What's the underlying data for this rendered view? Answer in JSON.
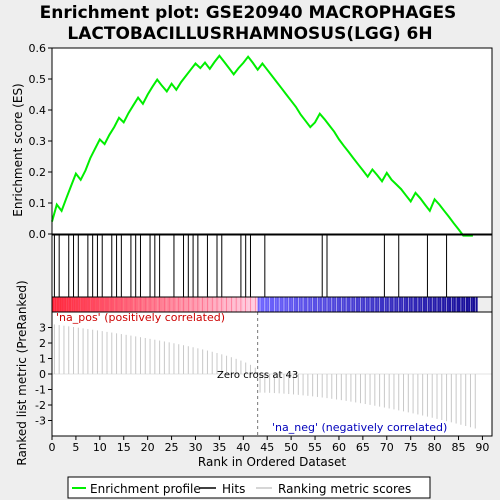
{
  "title_lines": [
    "Enrichment plot: GSE20940 MACROPHAGES",
    "LACTOBACILLUSRHAMNOSUS(LGG) 6H"
  ],
  "colors": {
    "background": "#eeeeee",
    "panel": "#ffffff",
    "es_line": "#00ee00",
    "hits": "#000000",
    "metric": "#c8c8c8",
    "pos_label": "#cc0000",
    "neg_label": "#0000bb",
    "zero_cross": "#999999"
  },
  "chart_data": {
    "type": "line",
    "top_panel": {
      "ylabel": "Enrichment score (ES)",
      "ylim": [
        0,
        0.6
      ],
      "yticks": [
        0.0,
        0.1,
        0.2,
        0.3,
        0.4,
        0.5,
        0.6
      ],
      "ytick_labels": [
        "0.0",
        "0.1",
        "0.2",
        "0.3",
        "0.4",
        "0.5",
        "0.6"
      ],
      "series": [
        {
          "x": [
            0,
            1,
            2,
            3,
            4,
            5,
            6,
            7,
            8,
            9,
            10,
            11,
            12,
            13,
            14,
            15,
            16,
            17,
            18,
            19,
            20,
            21,
            22,
            23,
            24,
            25,
            26,
            27,
            28,
            29,
            30,
            31,
            32,
            33,
            34,
            35,
            36,
            37,
            38,
            39,
            40,
            41,
            42,
            43,
            44,
            45,
            46,
            47,
            48,
            49,
            50,
            51,
            52,
            53,
            54,
            55,
            56,
            57,
            58,
            59,
            60,
            61,
            62,
            63,
            64,
            65,
            66,
            67,
            68,
            69,
            70,
            71,
            72,
            73,
            74,
            75,
            76,
            77,
            78,
            79,
            80,
            81,
            82,
            83,
            84,
            85,
            86,
            87,
            88
          ],
          "y": [
            0.04,
            0.095,
            0.075,
            0.115,
            0.155,
            0.195,
            0.175,
            0.205,
            0.245,
            0.275,
            0.305,
            0.29,
            0.32,
            0.345,
            0.375,
            0.36,
            0.39,
            0.415,
            0.44,
            0.42,
            0.45,
            0.475,
            0.498,
            0.478,
            0.46,
            0.485,
            0.465,
            0.49,
            0.51,
            0.53,
            0.55,
            0.535,
            0.553,
            0.533,
            0.555,
            0.575,
            0.555,
            0.535,
            0.515,
            0.535,
            0.552,
            0.572,
            0.552,
            0.53,
            0.55,
            0.53,
            0.51,
            0.49,
            0.47,
            0.45,
            0.43,
            0.41,
            0.385,
            0.365,
            0.345,
            0.36,
            0.388,
            0.37,
            0.35,
            0.33,
            0.305,
            0.285,
            0.265,
            0.245,
            0.225,
            0.205,
            0.185,
            0.208,
            0.19,
            0.17,
            0.197,
            0.175,
            0.16,
            0.145,
            0.125,
            0.105,
            0.133,
            0.115,
            0.095,
            0.075,
            0.112,
            0.095,
            0.075,
            0.055,
            0.035,
            0.015,
            -0.005,
            -0.005,
            -0.005
          ]
        }
      ]
    },
    "hits": [
      0,
      1,
      3,
      4,
      5,
      7,
      8,
      9,
      10,
      12,
      13,
      14,
      16,
      17,
      18,
      20,
      21,
      22,
      25,
      27,
      28,
      29,
      30,
      32,
      34,
      35,
      39,
      40,
      41,
      44,
      56,
      57,
      69,
      72,
      78,
      82
    ],
    "bottom_panel": {
      "ylabel": "Ranked list metric (PreRanked)",
      "ylim": [
        -4,
        4
      ],
      "yticks": [
        -3,
        -2,
        -1,
        0,
        1,
        2,
        3
      ],
      "ytick_labels": [
        "-3",
        "-2",
        "-1",
        "0",
        "1",
        "2",
        "3"
      ],
      "metric_start": 3.2,
      "metric_end": -3.6,
      "zero_cross": 43,
      "zero_cross_label": "Zero cross at 43",
      "pos_label": "'na_pos' (positively correlated)",
      "neg_label": "'na_neg' (negatively correlated)"
    },
    "xlabel": "Rank in Ordered Dataset",
    "xlim": [
      0,
      92
    ],
    "xticks": [
      0,
      5,
      10,
      15,
      20,
      25,
      30,
      35,
      40,
      45,
      50,
      55,
      60,
      65,
      70,
      75,
      80,
      85,
      90
    ],
    "xtick_labels": [
      "0",
      "5",
      "10",
      "15",
      "20",
      "25",
      "30",
      "35",
      "40",
      "45",
      "50",
      "55",
      "60",
      "65",
      "70",
      "75",
      "80",
      "85",
      "90"
    ],
    "n_genes": 89,
    "legend": {
      "placement": "bottom",
      "entries": [
        "Enrichment profile",
        "Hits",
        "Ranking metric scores"
      ]
    }
  }
}
